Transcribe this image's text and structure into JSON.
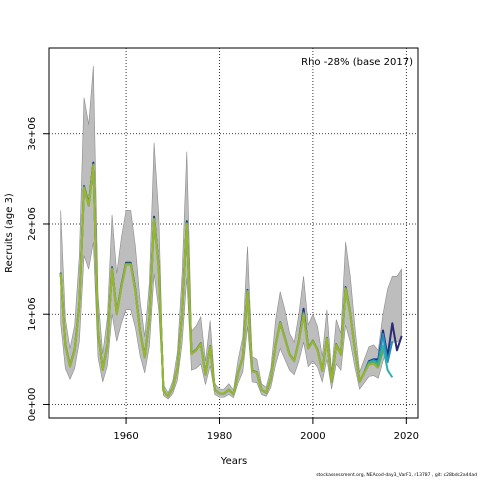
{
  "chart_data": {
    "type": "line",
    "annotation": "Rho -28% (base 2017)",
    "xlabel": "Years",
    "ylabel": "Recruits (age 3)",
    "xlim": [
      1943.5,
      2022.5
    ],
    "ylim": [
      -150000,
      3950000
    ],
    "x_ticks": [
      1960,
      1980,
      2000,
      2020
    ],
    "x_tick_labels": [
      "1960",
      "1980",
      "2000",
      "2020"
    ],
    "y_ticks": [
      0,
      1000000,
      2000000,
      3000000
    ],
    "y_tick_labels": [
      "0e+00",
      "1e+06",
      "2e+06",
      "3e+06"
    ],
    "grid": "dotted at ticks",
    "years": [
      1946,
      1947,
      1948,
      1949,
      1950,
      1951,
      1952,
      1953,
      1954,
      1955,
      1956,
      1957,
      1958,
      1959,
      1960,
      1961,
      1962,
      1963,
      1964,
      1965,
      1966,
      1967,
      1968,
      1969,
      1970,
      1971,
      1972,
      1973,
      1974,
      1975,
      1976,
      1977,
      1978,
      1979,
      1980,
      1981,
      1982,
      1983,
      1984,
      1985,
      1986,
      1987,
      1988,
      1989,
      1990,
      1991,
      1992,
      1993,
      1994,
      1995,
      1996,
      1997,
      1998,
      1999,
      2000,
      2001,
      2002,
      2003,
      2004,
      2005,
      2006,
      2007,
      2008,
      2009,
      2010,
      2011,
      2012,
      2013,
      2014,
      2015,
      2016,
      2017,
      2018,
      2019
    ],
    "base": [
      1450000,
      650000,
      420000,
      600000,
      1100000,
      2400000,
      2200000,
      2650000,
      800000,
      380000,
      650000,
      1500000,
      1000000,
      1300000,
      1550000,
      1550000,
      1250000,
      800000,
      520000,
      950000,
      2050000,
      1500000,
      150000,
      90000,
      180000,
      400000,
      1000000,
      2000000,
      560000,
      600000,
      670000,
      330000,
      640000,
      160000,
      120000,
      120000,
      160000,
      110000,
      350000,
      520000,
      1250000,
      370000,
      350000,
      160000,
      130000,
      280000,
      650000,
      900000,
      730000,
      550000,
      480000,
      700000,
      1000000,
      620000,
      700000,
      600000,
      370000,
      730000,
      250000,
      660000,
      550000,
      1280000,
      1000000,
      600000,
      250000,
      350000,
      450000,
      460000,
      420000,
      700000,
      900000,
      1000000,
      1000000,
      1050000
    ],
    "lower": [
      900000,
      400000,
      280000,
      400000,
      700000,
      1650000,
      1500000,
      1800000,
      520000,
      250000,
      430000,
      1000000,
      700000,
      900000,
      1050000,
      1050000,
      850000,
      540000,
      350000,
      650000,
      1450000,
      1050000,
      100000,
      60000,
      120000,
      270000,
      680000,
      1400000,
      380000,
      400000,
      450000,
      220000,
      430000,
      110000,
      80000,
      80000,
      110000,
      75000,
      240000,
      360000,
      870000,
      250000,
      240000,
      110000,
      90000,
      190000,
      440000,
      620000,
      500000,
      380000,
      330000,
      480000,
      690000,
      420000,
      480000,
      410000,
      250000,
      500000,
      170000,
      450000,
      380000,
      880000,
      690000,
      410000,
      170000,
      240000,
      310000,
      320000,
      290000,
      480000,
      620000,
      690000,
      690000,
      730000
    ],
    "upper": [
      2150000,
      950000,
      620000,
      880000,
      1650000,
      3400000,
      3100000,
      3750000,
      1200000,
      560000,
      960000,
      2100000,
      1450000,
      1850000,
      2150000,
      2150000,
      1750000,
      1150000,
      750000,
      1350000,
      2900000,
      2100000,
      220000,
      130000,
      260000,
      580000,
      1450000,
      2800000,
      810000,
      870000,
      970000,
      480000,
      930000,
      230000,
      170000,
      170000,
      230000,
      160000,
      500000,
      750000,
      1750000,
      530000,
      500000,
      230000,
      190000,
      400000,
      930000,
      1250000,
      1050000,
      790000,
      690000,
      1000000,
      1420000,
      880000,
      1000000,
      860000,
      530000,
      1050000,
      360000,
      940000,
      790000,
      1800000,
      1420000,
      860000,
      360000,
      500000,
      640000,
      660000,
      600000,
      1000000,
      1280000,
      1420000,
      1420000,
      1500000
    ],
    "series": [
      {
        "color": "#2b2b73",
        "values": [
          1460000,
          660000,
          430000,
          610000,
          1110000,
          2420000,
          2220000,
          2680000,
          810000,
          385000,
          660000,
          1520000,
          1010000,
          1320000,
          1570000,
          1570000,
          1270000,
          810000,
          525000,
          960000,
          2080000,
          1520000,
          152000,
          91000,
          182000,
          405000,
          1010000,
          2030000,
          566000,
          606000,
          677000,
          333000,
          647000,
          162000,
          121000,
          121000,
          162000,
          111000,
          354000,
          526000,
          1270000,
          375000,
          355000,
          162000,
          131000,
          283000,
          657000,
          910000,
          738000,
          556000,
          485000,
          708000,
          1060000,
          627000,
          707000,
          606000,
          374000,
          738000,
          253000,
          667000,
          556000,
          1300000,
          1010000,
          606000,
          253000,
          354000,
          480000,
          500000,
          500000,
          820000,
          530000,
          900000,
          600000,
          760000
        ]
      },
      {
        "color": "#1f8fc4",
        "values": [
          1455000,
          655000,
          425000,
          605000,
          1105000,
          2410000,
          2210000,
          2660000,
          805000,
          382000,
          655000,
          1510000,
          1005000,
          1310000,
          1560000,
          1560000,
          1260000,
          805000,
          522000,
          955000,
          2060000,
          1510000,
          151000,
          90500,
          181000,
          402000,
          1005000,
          2010000,
          563000,
          603000,
          673000,
          331000,
          643000,
          161000,
          120500,
          120500,
          161000,
          110500,
          352000,
          523000,
          1260000,
          372000,
          352000,
          161000,
          130500,
          281000,
          653000,
          905000,
          734000,
          553000,
          482000,
          704000,
          1020000,
          623000,
          703000,
          603000,
          372000,
          734000,
          251000,
          663000,
          553000,
          1290000,
          1005000,
          603000,
          251000,
          352000,
          470000,
          490000,
          470000,
          780000,
          470000,
          700000
        ]
      },
      {
        "color": "#2fb0b0",
        "values": [
          1452000,
          652000,
          422000,
          602000,
          1102000,
          2405000,
          2205000,
          2655000,
          802000,
          381000,
          652000,
          1505000,
          1002000,
          1305000,
          1555000,
          1555000,
          1255000,
          802000,
          521000,
          952000,
          2055000,
          1505000,
          150500,
          90200,
          180500,
          401000,
          1002000,
          2005000,
          561000,
          601000,
          671000,
          330500,
          641000,
          160500,
          120200,
          120200,
          160500,
          110200,
          351000,
          521000,
          1255000,
          371000,
          351000,
          160500,
          130200,
          280500,
          651000,
          902000,
          732000,
          551000,
          481000,
          702000,
          1010000,
          621000,
          701000,
          601000,
          371000,
          732000,
          250500,
          661000,
          551000,
          1285000,
          1002000,
          601000,
          250500,
          351000,
          460000,
          480000,
          440000,
          650000,
          380000,
          300000
        ]
      },
      {
        "color": "#4fb060",
        "values": [
          1450000,
          650000,
          420000,
          600000,
          1100000,
          2400000,
          2200000,
          2650000,
          800000,
          380000,
          650000,
          1500000,
          1000000,
          1300000,
          1550000,
          1550000,
          1250000,
          800000,
          520000,
          950000,
          2050000,
          1500000,
          150000,
          90000,
          180000,
          400000,
          1000000,
          2000000,
          560000,
          600000,
          670000,
          330000,
          640000,
          160000,
          120000,
          120000,
          160000,
          110000,
          350000,
          520000,
          1250000,
          370000,
          350000,
          160000,
          130000,
          280000,
          650000,
          900000,
          730000,
          550000,
          480000,
          700000,
          1000000,
          620000,
          700000,
          600000,
          370000,
          730000,
          250000,
          660000,
          550000,
          1280000,
          1000000,
          600000,
          250000,
          350000,
          450000,
          460000,
          420000,
          600000
        ]
      },
      {
        "color": "#9bb52b",
        "values": [
          1450000,
          650000,
          420000,
          600000,
          1100000,
          2400000,
          2200000,
          2650000,
          800000,
          380000,
          650000,
          1500000,
          1000000,
          1300000,
          1550000,
          1550000,
          1250000,
          800000,
          520000,
          950000,
          2050000,
          1500000,
          150000,
          90000,
          180000,
          400000,
          1000000,
          2000000,
          560000,
          600000,
          670000,
          330000,
          640000,
          160000,
          120000,
          120000,
          160000,
          110000,
          350000,
          520000,
          1250000,
          370000,
          350000,
          160000,
          130000,
          280000,
          650000,
          900000,
          730000,
          550000,
          480000,
          700000,
          1000000,
          620000,
          700000,
          600000,
          370000,
          730000,
          250000,
          660000,
          550000,
          1280000,
          1000000,
          600000,
          250000,
          350000,
          440000,
          450000,
          400000
        ]
      }
    ]
  },
  "footer": "stockassessment.org, NEAcod-day3_VarF1, r13787 , git: c28bdc2a44ad"
}
